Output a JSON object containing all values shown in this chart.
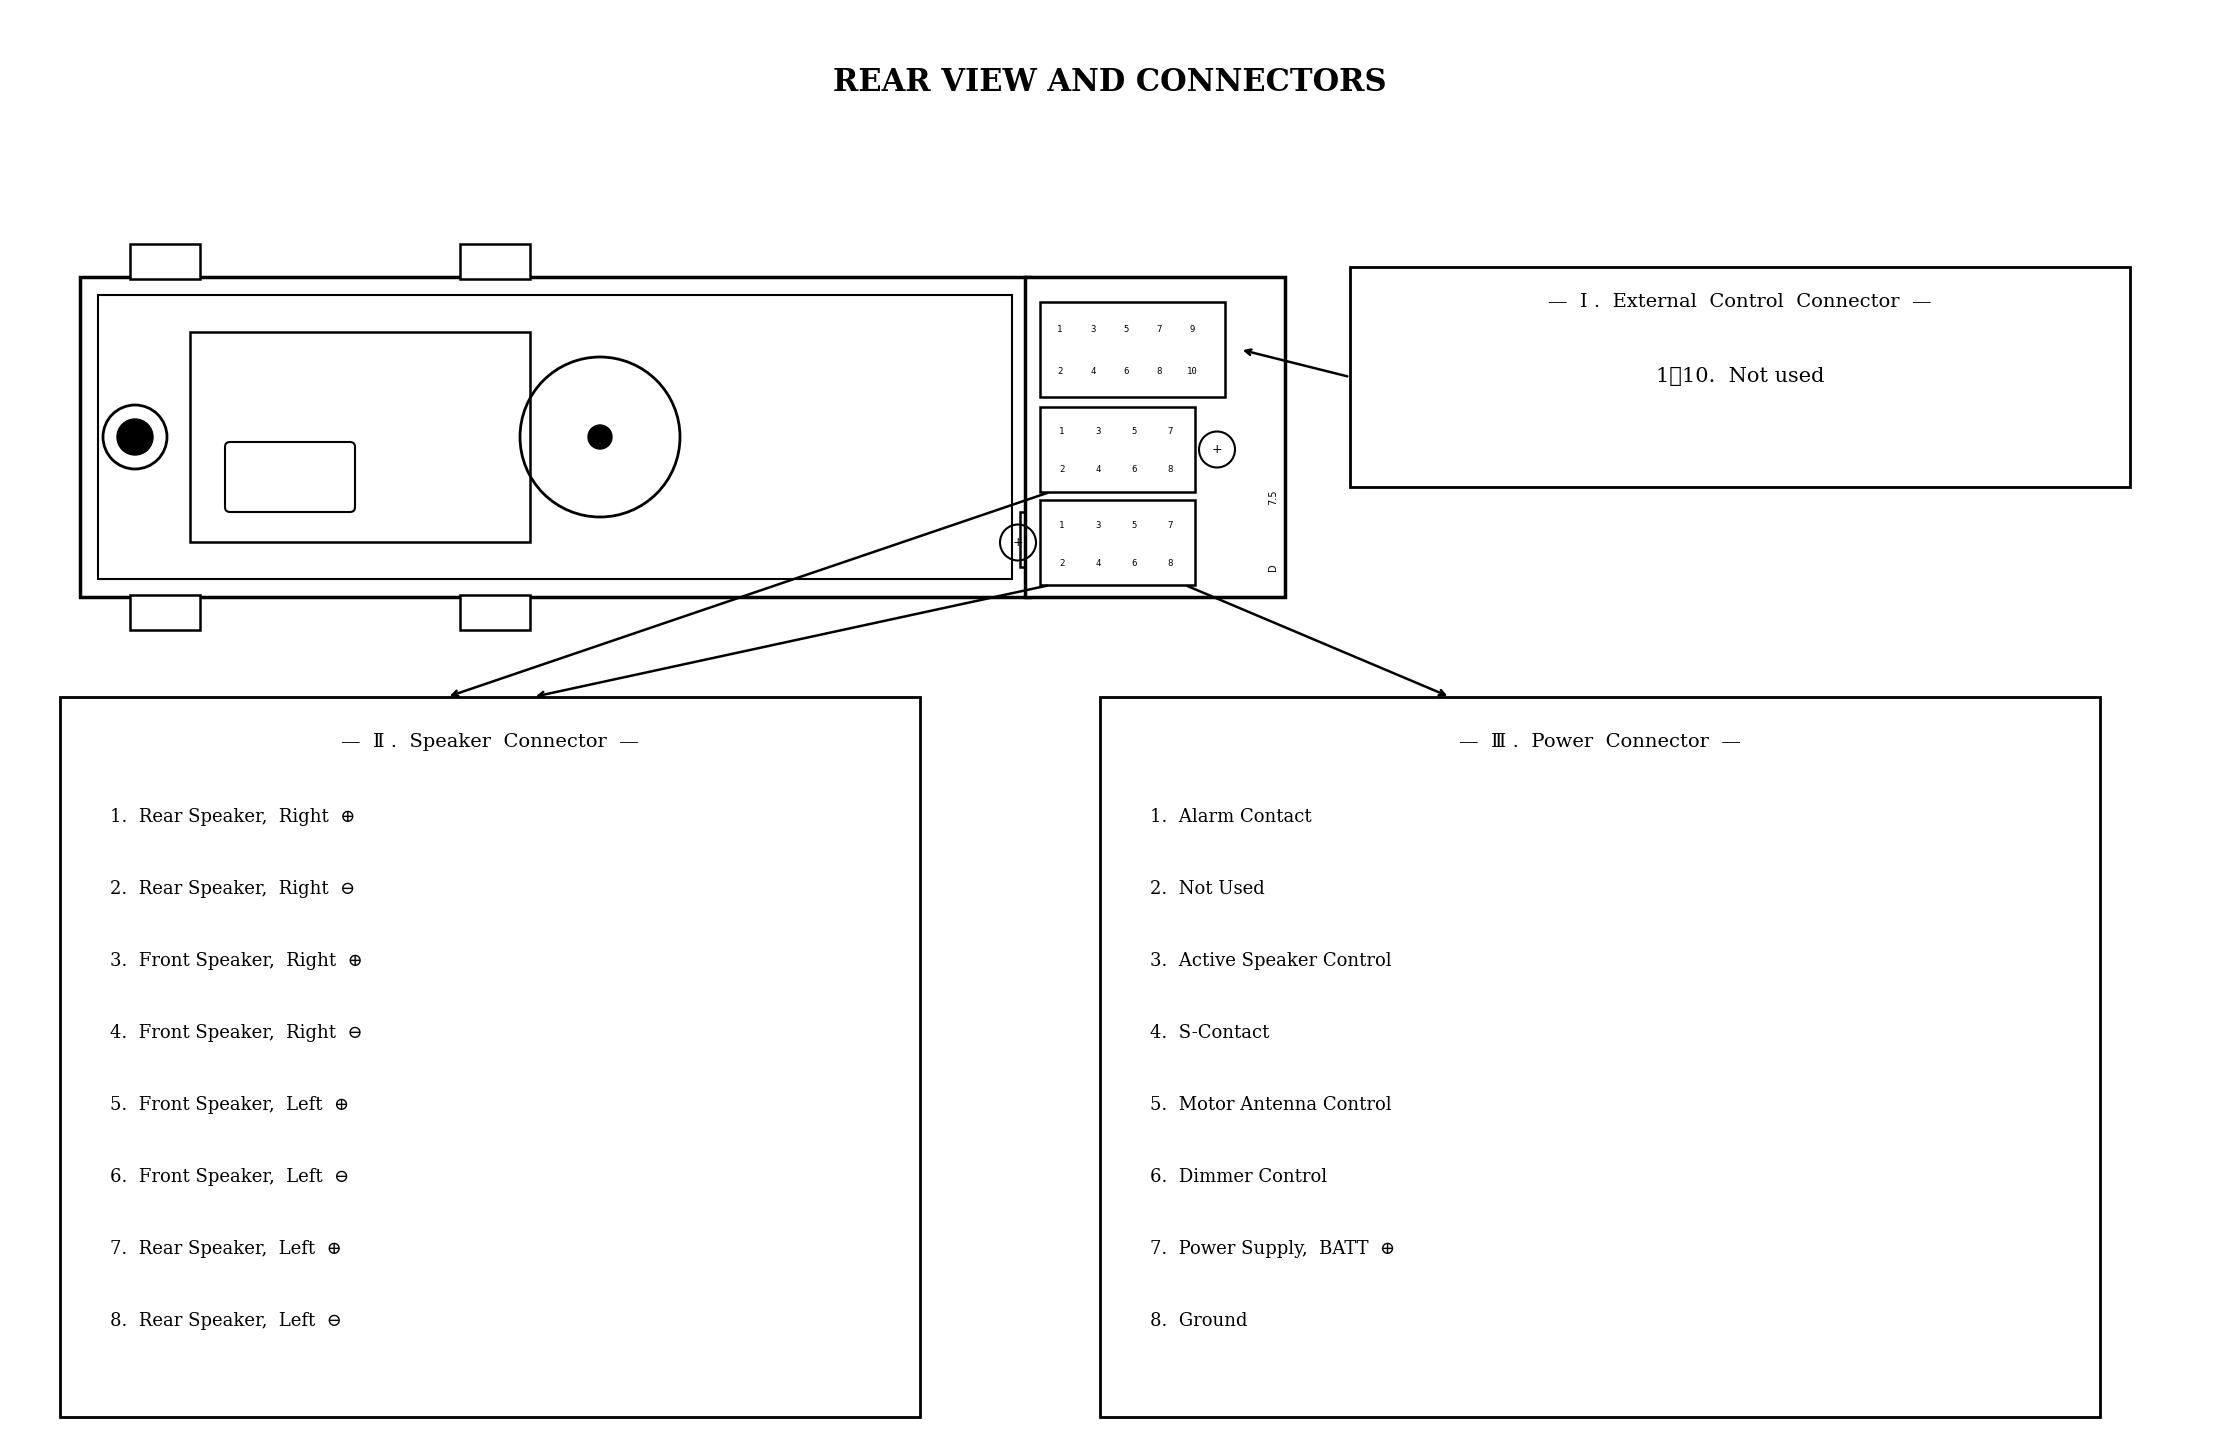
{
  "title": "REAR VIEW AND CONNECTORS",
  "title_fontsize": 22,
  "title_bold": true,
  "bg_color": "#ffffff",
  "diagram_color": "#000000",
  "box1_title": "—  I .  External  Control  Connector  —",
  "box1_sub": "1～10.  Not used",
  "box2_title": "—  Ⅱ .  Speaker  Connector  —",
  "box2_items": [
    "1.  Rear Speaker,  Right  ⊕",
    "2.  Rear Speaker,  Right  ⊖",
    "3.  Front Speaker,  Right  ⊕",
    "4.  Front Speaker,  Right  ⊖",
    "5.  Front Speaker,  Left  ⊕",
    "6.  Front Speaker,  Left  ⊖",
    "7.  Rear Speaker,  Left  ⊕",
    "8.  Rear Speaker,  Left  ⊖"
  ],
  "box3_title": "—  Ⅲ .  Power  Connector  —",
  "box3_items": [
    "1.  Alarm Contact",
    "2.  Not Used",
    "3.  Active Speaker Control",
    "4.  S-Contact",
    "5.  Motor Antenna Control",
    "6.  Dimmer Control",
    "7.  Power Supply,  BATT  ⊕",
    "8.  Ground"
  ],
  "text_fontsize": 13,
  "label_fontsize": 14
}
